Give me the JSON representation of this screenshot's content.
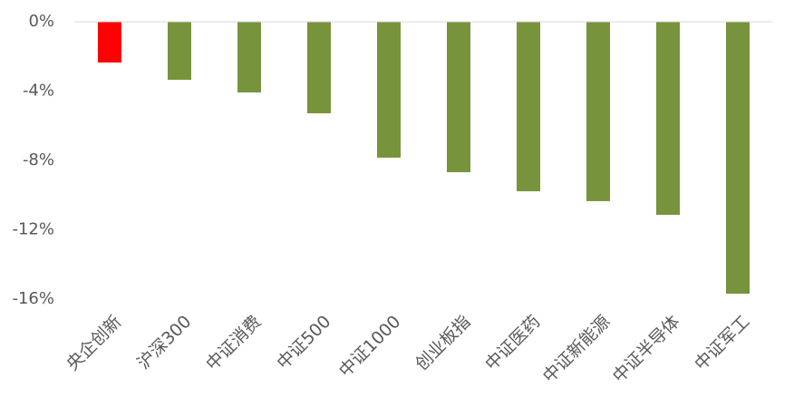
{
  "chart_data": {
    "type": "bar",
    "categories": [
      "央企创新",
      "沪深300",
      "中证消费",
      "中证500",
      "中证1000",
      "创业板指",
      "中证医药",
      "中证新能源",
      "中证半导体",
      "中证军工"
    ],
    "values": [
      -2.35,
      -3.35,
      -4.08,
      -5.28,
      -7.84,
      -8.68,
      -9.78,
      -10.35,
      -11.14,
      -15.69
    ],
    "colors": [
      "#ff0000",
      "#77933c",
      "#77933c",
      "#77933c",
      "#77933c",
      "#77933c",
      "#77933c",
      "#77933c",
      "#77933c",
      "#77933c"
    ],
    "ylim": [
      -16,
      0
    ],
    "yticks": [
      {
        "value": 0,
        "label": "0%"
      },
      {
        "value": -4,
        "label": "-4%"
      },
      {
        "value": -8,
        "label": "-8%"
      },
      {
        "value": -12,
        "label": "-12%"
      },
      {
        "value": -16,
        "label": "-16%"
      }
    ],
    "grid": false
  }
}
